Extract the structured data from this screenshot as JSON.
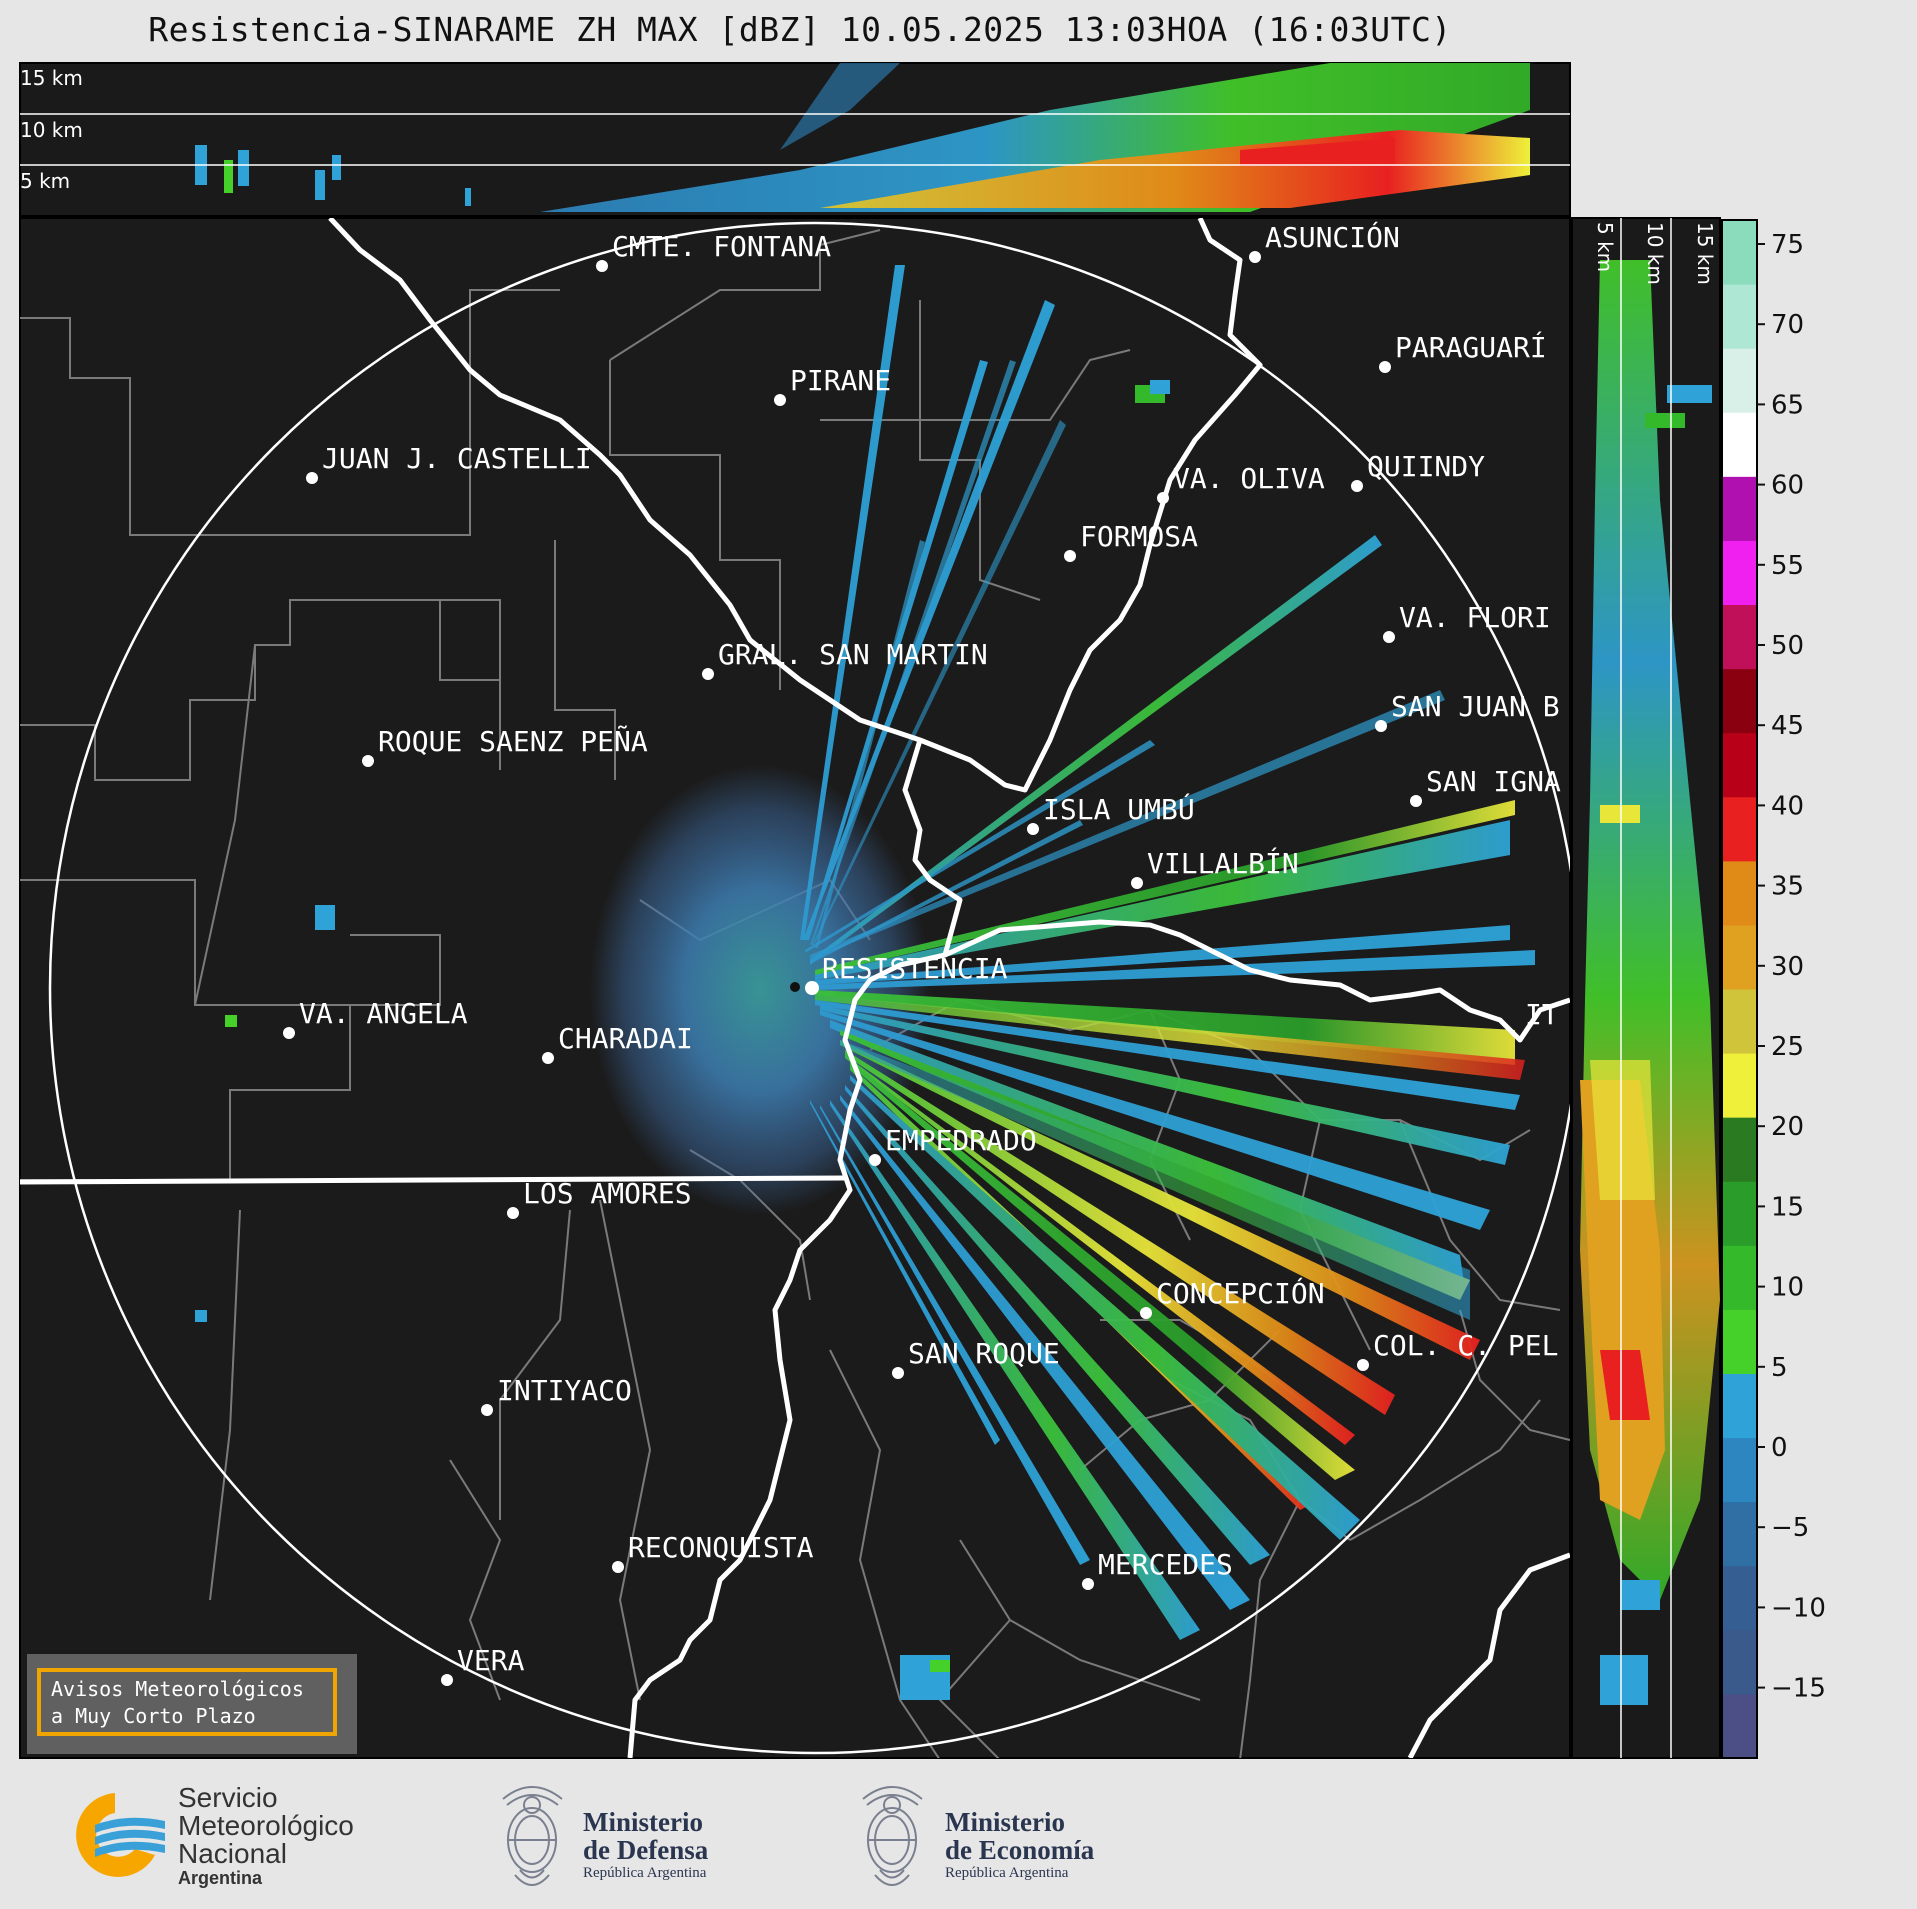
{
  "header": {
    "title": "Resistencia-SINARAME ZH MAX [dBZ] 10.05.2025 13:03HOA (16:03UTC)"
  },
  "cross_sections": {
    "top_labels": [
      "15 km",
      "10 km",
      "5 km"
    ],
    "side_labels": [
      "5 km",
      "10 km",
      "15 km"
    ]
  },
  "colorbar": {
    "ticks": [
      "75",
      "70",
      "65",
      "60",
      "55",
      "50",
      "45",
      "40",
      "35",
      "30",
      "25",
      "20",
      "15",
      "10",
      "5",
      "0",
      "−5",
      "−10",
      "−15"
    ],
    "colors": [
      "#4b4f86",
      "#3b5a8c",
      "#355f93",
      "#2f6fa4",
      "#2e86c0",
      "#2fa3d8",
      "#45d12a",
      "#33b92a",
      "#2a9c2a",
      "#2a7a22",
      "#eef03a",
      "#cfc43a",
      "#e0a020",
      "#e08a18",
      "#e82020",
      "#b80018",
      "#8a0010",
      "#c0105a",
      "#f020f0",
      "#b010b0",
      "#ffffff",
      "#d8f0e8",
      "#aee8d4",
      "#8adcbc"
    ],
    "color_meaning": "reflectivity dBZ scale"
  },
  "cities": [
    {
      "name": "CMTE. FONTANA"
    },
    {
      "name": "ASUNCIÓN"
    },
    {
      "name": "PARAGUARÍ"
    },
    {
      "name": "PIRANE"
    },
    {
      "name": "JUAN J. CASTELLI"
    },
    {
      "name": "VA. OLIVA"
    },
    {
      "name": "QUIINDY"
    },
    {
      "name": "FORMOSA"
    },
    {
      "name": "VA. FLORI"
    },
    {
      "name": "GRAL. SAN MARTIN"
    },
    {
      "name": "SAN JUAN B"
    },
    {
      "name": "ROQUE SAENZ PEÑA"
    },
    {
      "name": "SAN IGNA"
    },
    {
      "name": "ISLA UMBÚ"
    },
    {
      "name": "VILLALBÍN"
    },
    {
      "name": "RESISTENCIA"
    },
    {
      "name": "VA. ANGELA"
    },
    {
      "name": "CHARADAI"
    },
    {
      "name": "IT"
    },
    {
      "name": "EMPEDRADO"
    },
    {
      "name": "LOS AMORES"
    },
    {
      "name": "CONCEPCIÓN"
    },
    {
      "name": "COL. C. PEL"
    },
    {
      "name": "SAN ROQUE"
    },
    {
      "name": "INTIYACO"
    },
    {
      "name": "RECONQUISTA"
    },
    {
      "name": "MERCEDES"
    },
    {
      "name": "VERA"
    }
  ],
  "alert_box": {
    "text": "Avisos Meteorológicos\na Muy Corto Plazo"
  },
  "logos": {
    "smn": {
      "line1": "Servicio",
      "line2": "Meteorológico",
      "line3": "Nacional",
      "line4": "Argentina"
    },
    "defensa": {
      "line1": "Ministerio",
      "line2": "de Defensa",
      "line3": "República Argentina"
    },
    "economia": {
      "line1": "Ministerio",
      "line2": "de Economía",
      "line3": "República Argentina"
    }
  }
}
